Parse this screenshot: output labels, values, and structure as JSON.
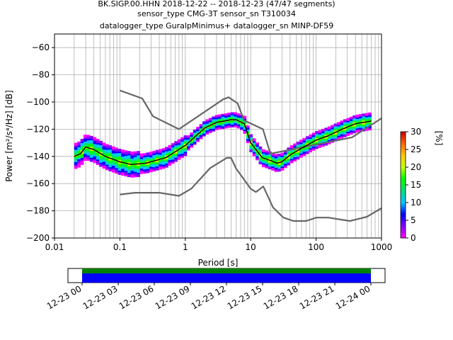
{
  "title": {
    "line1": "BK.SIGP.00.HHN   2018-12-22 -- 2018-12-23  (47/47 segments)",
    "line2": "sensor_type CMG-3T sensor_sn T310034",
    "line3": "datalogger_type GuralpMinimus+ datalogger_sn MINP-DF59"
  },
  "chart_data": [
    {
      "type": "heatmap",
      "title": "BK.SIGP.00.HHN   2018-12-22 -- 2018-12-23  (47/47 segments)",
      "xlabel": "Period [s]",
      "ylabel": "Power [m²/s⁴/Hz] [dB]",
      "x_scale": "log",
      "xlim": [
        0.01,
        1000
      ],
      "ylim": [
        -200,
        -50
      ],
      "x_tick_labels": [
        "0.01",
        "0.1",
        "1",
        "10",
        "100",
        "1000"
      ],
      "y_ticks": [
        -60,
        -80,
        -100,
        -120,
        -140,
        -160,
        -180,
        -200
      ],
      "grid": true,
      "colorbar": {
        "label": "[%]",
        "range": [
          0,
          30
        ],
        "ticks": [
          0,
          5,
          10,
          15,
          20,
          25,
          30
        ],
        "colormap": [
          "#ff00ff",
          "#8800ff",
          "#0000ff",
          "#00c8ff",
          "#00e080",
          "#00ff00",
          "#c8ff00",
          "#ffc800",
          "#ff6400",
          "#c80000"
        ]
      },
      "series": [
        {
          "role": "new-high-noise-model",
          "x": [
            0.1,
            0.22,
            0.32,
            0.8,
            3.8,
            4.6,
            6.3,
            7.9,
            15.4,
            20,
            354.8,
            1000
          ],
          "y": [
            -91.5,
            -97.4,
            -110.5,
            -120,
            -98,
            -96.5,
            -101,
            -113.5,
            -120,
            -138,
            -126,
            -112
          ]
        },
        {
          "role": "new-low-noise-model",
          "x": [
            0.1,
            0.17,
            0.4,
            0.8,
            1.24,
            2.4,
            4.3,
            5,
            6,
            10,
            12,
            15.6,
            21.9,
            31.6,
            45,
            70,
            101,
            154,
            328,
            600,
            1000
          ],
          "y": [
            -168,
            -166.7,
            -166.7,
            -169,
            -163.7,
            -148.6,
            -141.1,
            -141.1,
            -149,
            -163.8,
            -166.2,
            -162.1,
            -177.5,
            -185,
            -187.5,
            -187.5,
            -185,
            -185,
            -187.5,
            -184.4,
            -178
          ]
        },
        {
          "role": "mode",
          "x": [
            0.02,
            0.025,
            0.03,
            0.04,
            0.06,
            0.1,
            0.15,
            0.25,
            0.5,
            1,
            2,
            3,
            4,
            5,
            6,
            8,
            10,
            15,
            20,
            25,
            30,
            40,
            60,
            100,
            150,
            250,
            400,
            700
          ],
          "y": [
            -140,
            -138,
            -133,
            -135,
            -140,
            -144,
            -146,
            -145,
            -141,
            -132,
            -119,
            -115,
            -114,
            -113,
            -113,
            -116,
            -130,
            -141,
            -143,
            -145,
            -144,
            -139,
            -134,
            -128,
            -125,
            -120,
            -116,
            -114
          ]
        }
      ]
    },
    {
      "type": "timeline",
      "x_tick_labels": [
        "12-23 00",
        "12-23 03",
        "12-23 06",
        "12-23 09",
        "12-23 12",
        "12-23 15",
        "12-23 18",
        "12-23 21",
        "12-24 00"
      ],
      "coverage": [
        {
          "color": "#008000",
          "start": 0,
          "end": 24
        },
        {
          "color": "#0000ff",
          "start": 0,
          "end": 24
        }
      ]
    }
  ]
}
